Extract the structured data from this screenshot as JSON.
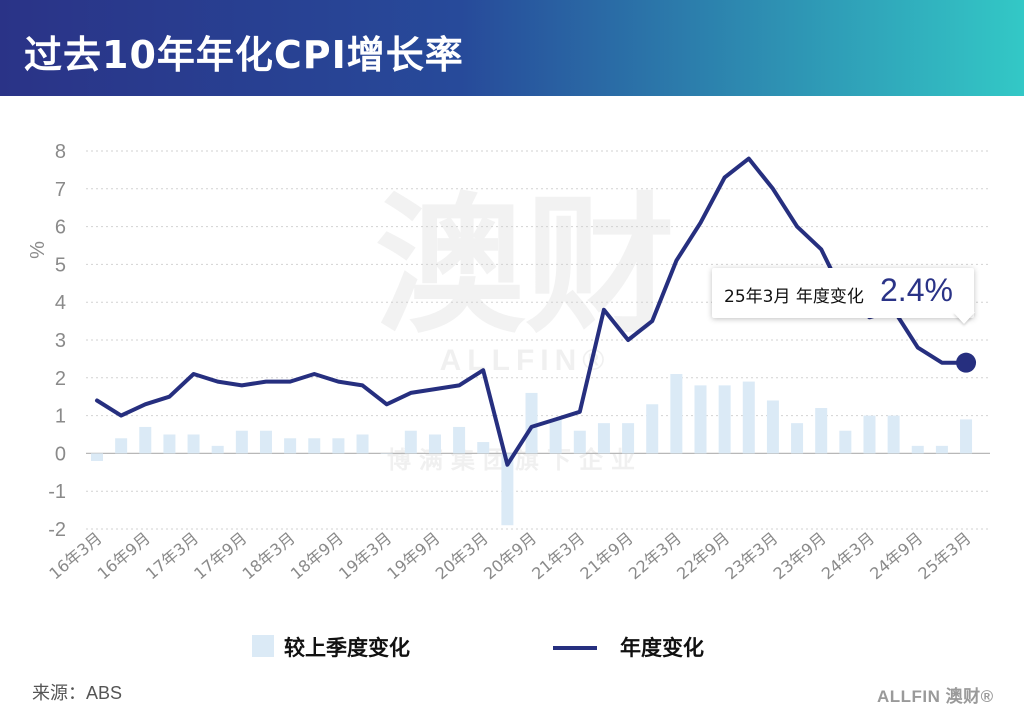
{
  "header": {
    "title": "过去10年年化CPI增长率"
  },
  "chart_data": {
    "type": "bar+line",
    "ylabel": "%",
    "ylim": [
      -2,
      8
    ],
    "yticks": [
      -2,
      -1,
      0,
      1,
      2,
      3,
      4,
      5,
      6,
      7,
      8
    ],
    "grid": true,
    "x_tick_labels": [
      "16年3月",
      "16年9月",
      "17年3月",
      "17年9月",
      "18年3月",
      "18年9月",
      "19年3月",
      "19年9月",
      "20年3月",
      "20年9月",
      "21年3月",
      "21年9月",
      "22年3月",
      "22年9月",
      "23年3月",
      "23年9月",
      "24年3月",
      "24年9月",
      "25年3月"
    ],
    "quarters": [
      "16年3月",
      "16年6月",
      "16年9月",
      "16年12月",
      "17年3月",
      "17年6月",
      "17年9月",
      "17年12月",
      "18年3月",
      "18年6月",
      "18年9月",
      "18年12月",
      "19年3月",
      "19年6月",
      "19年9月",
      "19年12月",
      "20年3月",
      "20年6月",
      "20年9月",
      "20年12月",
      "21年3月",
      "21年6月",
      "21年9月",
      "21年12月",
      "22年3月",
      "22年6月",
      "22年9月",
      "22年12月",
      "23年3月",
      "23年6月",
      "23年9月",
      "23年12月",
      "24年3月",
      "24年6月",
      "24年9月",
      "24年12月",
      "25年3月"
    ],
    "series": [
      {
        "name": "较上季度变化",
        "kind": "bar",
        "color": "#dbeaf6",
        "values": [
          -0.2,
          0.4,
          0.7,
          0.5,
          0.5,
          0.2,
          0.6,
          0.6,
          0.4,
          0.4,
          0.4,
          0.5,
          0.0,
          0.6,
          0.5,
          0.7,
          0.3,
          -1.9,
          1.6,
          0.9,
          0.6,
          0.8,
          0.8,
          1.3,
          2.1,
          1.8,
          1.8,
          1.9,
          1.4,
          0.8,
          1.2,
          0.6,
          1.0,
          1.0,
          0.2,
          0.2,
          0.9
        ]
      },
      {
        "name": "年度变化",
        "kind": "line",
        "color": "#262f7f",
        "values": [
          1.4,
          1.0,
          1.3,
          1.5,
          2.1,
          1.9,
          1.8,
          1.9,
          1.9,
          2.1,
          1.9,
          1.8,
          1.3,
          1.6,
          1.7,
          1.8,
          2.2,
          -0.3,
          0.7,
          0.9,
          1.1,
          3.8,
          3.0,
          3.5,
          5.1,
          6.1,
          7.3,
          7.8,
          7.0,
          6.0,
          5.4,
          4.1,
          3.6,
          3.8,
          2.8,
          2.4,
          2.4
        ]
      }
    ],
    "annotation": {
      "label": "25年3月 年度变化",
      "value": "2.4%"
    },
    "watermark": {
      "main": "澳财",
      "brand": "ALLFIN®",
      "tagline": "博满集团旗下企业"
    }
  },
  "legend": {
    "bar_label": "较上季度变化",
    "line_label": "年度变化"
  },
  "footer": {
    "source": "来源：ABS",
    "logo_text": "ALLFIN",
    "logo_cn": "澳财®"
  }
}
